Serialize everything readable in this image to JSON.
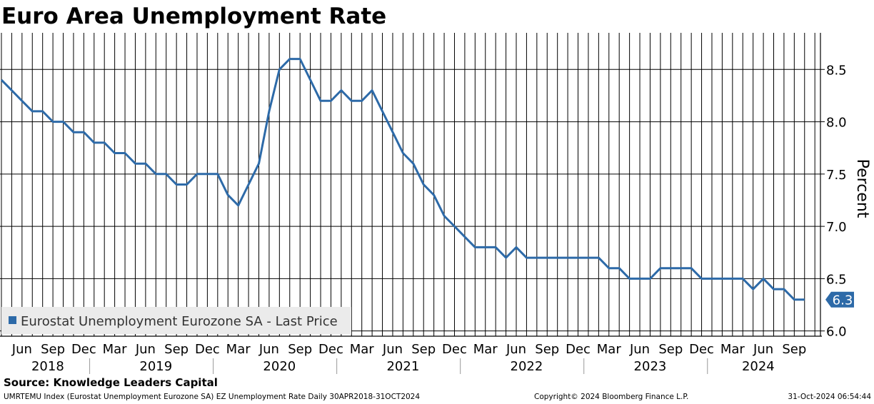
{
  "header": {
    "title": "Euro Area Unemployment Rate"
  },
  "source": "Source: Knowledge Leaders Capital",
  "footer": {
    "left": "UMRTEMU Index (Eurostat Unemployment Eurozone SA) EZ Unemployment Rate  Daily 30APR2018-31OCT2024",
    "middle": "Copyright© 2024 Bloomberg Finance L.P.",
    "right": "31-Oct-2024 06:54:44"
  },
  "colors": {
    "series": "#2d6aa8",
    "grid": "#000000",
    "legend_bg": "#ebebeb"
  },
  "chart_data": {
    "type": "line",
    "title": "Euro Area Unemployment Rate",
    "ylabel": "Percent",
    "xlabel": "",
    "ylim": [
      5.95,
      8.85
    ],
    "yticks": [
      "6.0",
      "6.5",
      "7.0",
      "7.5",
      "8.0",
      "8.5"
    ],
    "x_start": "2018-04",
    "xticks": [
      {
        "month": "2018-06",
        "label": "Jun"
      },
      {
        "month": "2018-09",
        "label": "Sep"
      },
      {
        "month": "2018-12",
        "label": "Dec"
      },
      {
        "month": "2019-03",
        "label": "Mar"
      },
      {
        "month": "2019-06",
        "label": "Jun"
      },
      {
        "month": "2019-09",
        "label": "Sep"
      },
      {
        "month": "2019-12",
        "label": "Dec"
      },
      {
        "month": "2020-03",
        "label": "Mar"
      },
      {
        "month": "2020-06",
        "label": "Jun"
      },
      {
        "month": "2020-09",
        "label": "Sep"
      },
      {
        "month": "2020-12",
        "label": "Dec"
      },
      {
        "month": "2021-03",
        "label": "Mar"
      },
      {
        "month": "2021-06",
        "label": "Jun"
      },
      {
        "month": "2021-09",
        "label": "Sep"
      },
      {
        "month": "2021-12",
        "label": "Dec"
      },
      {
        "month": "2022-03",
        "label": "Mar"
      },
      {
        "month": "2022-06",
        "label": "Jun"
      },
      {
        "month": "2022-09",
        "label": "Sep"
      },
      {
        "month": "2022-12",
        "label": "Dec"
      },
      {
        "month": "2023-03",
        "label": "Mar"
      },
      {
        "month": "2023-06",
        "label": "Jun"
      },
      {
        "month": "2023-09",
        "label": "Sep"
      },
      {
        "month": "2023-12",
        "label": "Dec"
      },
      {
        "month": "2024-03",
        "label": "Mar"
      },
      {
        "month": "2024-06",
        "label": "Jun"
      },
      {
        "month": "2024-09",
        "label": "Sep"
      }
    ],
    "years": [
      "2018",
      "2019",
      "2020",
      "2021",
      "2022",
      "2023",
      "2024"
    ],
    "legend": "Eurostat Unemployment Eurozone SA - Last Price",
    "last_value_label": "6.3",
    "series": [
      {
        "name": "Eurostat Unemployment Eurozone SA - Last Price",
        "start": "2018-04",
        "values": [
          8.4,
          8.3,
          8.2,
          8.1,
          8.1,
          8.0,
          8.0,
          7.9,
          7.9,
          7.8,
          7.8,
          7.7,
          7.7,
          7.6,
          7.6,
          7.5,
          7.5,
          7.4,
          7.4,
          7.5,
          7.5,
          7.5,
          7.3,
          7.2,
          7.4,
          7.6,
          8.1,
          8.5,
          8.6,
          8.6,
          8.4,
          8.2,
          8.2,
          8.3,
          8.2,
          8.2,
          8.3,
          8.1,
          7.9,
          7.7,
          7.6,
          7.4,
          7.3,
          7.1,
          7.0,
          6.9,
          6.8,
          6.8,
          6.8,
          6.7,
          6.8,
          6.7,
          6.7,
          6.7,
          6.7,
          6.7,
          6.7,
          6.7,
          6.7,
          6.6,
          6.6,
          6.5,
          6.5,
          6.5,
          6.6,
          6.6,
          6.6,
          6.6,
          6.5,
          6.5,
          6.5,
          6.5,
          6.5,
          6.4,
          6.5,
          6.4,
          6.4,
          6.3,
          6.3
        ]
      }
    ]
  }
}
